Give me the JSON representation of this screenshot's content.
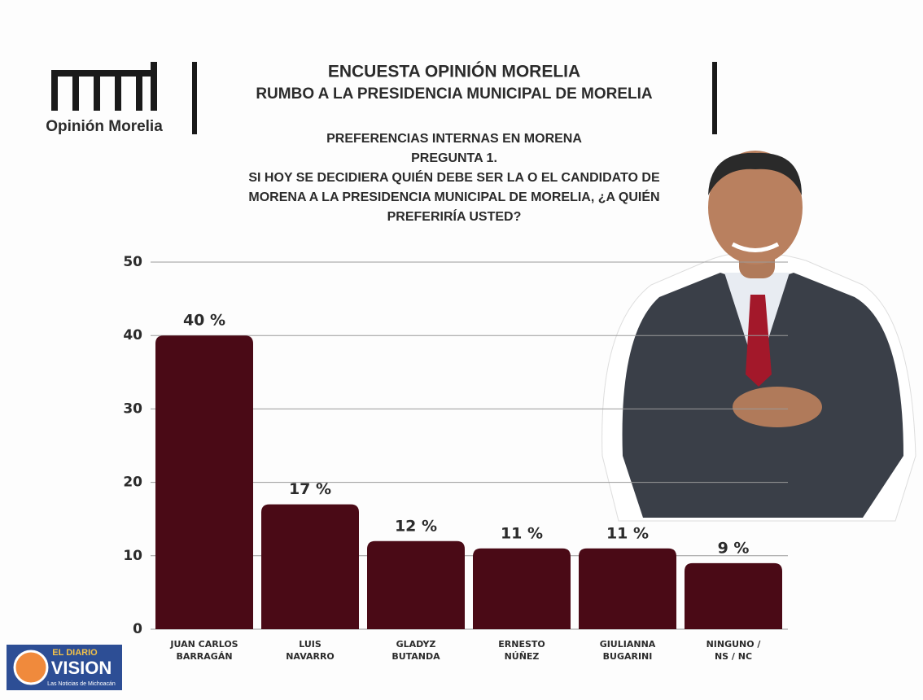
{
  "logo_text": "Opinión Morelia",
  "title": "ENCUESTA OPINIÓN MORELIA",
  "subtitle": "RUMBO A LA PRESIDENCIA MUNICIPAL DE MORELIA",
  "question": [
    "PREFERENCIAS INTERNAS EN MORENA",
    "PREGUNTA 1.",
    "SI HOY SE DECIDIERA QUIÉN DEBE SER LA O EL CANDIDATO DE",
    "MORENA A LA PRESIDENCIA MUNICIPAL DE MORELIA, ¿A QUIÉN",
    "PREFERIRÍA USTED?"
  ],
  "watermark": {
    "top": "EL DIARIO",
    "brand": "VISION",
    "tagline": "Las Noticias de Michoacán"
  },
  "chart_data": {
    "type": "bar",
    "categories": [
      [
        "JUAN CARLOS",
        "BARRAGÁN"
      ],
      [
        "LUIS",
        "NAVARRO"
      ],
      [
        "GLADYZ",
        "BUTANDA"
      ],
      [
        "ERNESTO",
        "NÚÑEZ"
      ],
      [
        "GIULIANNA",
        "BUGARINI"
      ],
      [
        "NINGUNO /",
        "NS / NC"
      ]
    ],
    "values": [
      40,
      17,
      12,
      11,
      11,
      9
    ],
    "value_labels": [
      "40 %",
      "17 %",
      "12 %",
      "11 %",
      "11 %",
      "9 %"
    ],
    "color": "#4a0a16",
    "ylim": [
      0,
      50
    ],
    "yticks": [
      0,
      10,
      20,
      30,
      40,
      50
    ],
    "grid": true
  }
}
